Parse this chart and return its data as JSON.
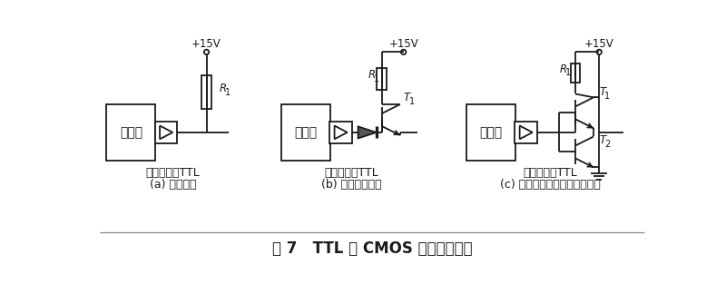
{
  "title": "图 7   TTL 或 CMOS 器件输出电路",
  "line_color": "#1a1a1a",
  "label_a": "(a) 直接输出",
  "label_b": "(b) 快速开通输出",
  "label_c": "(c) 快速开通和关断的推挽输出",
  "sub_label": "集电极开路TTL",
  "v15": "+15V",
  "r1_label": "R1",
  "t1_label": "T1",
  "t2_label": "T2",
  "mcu_label": "单片机",
  "font_size_title": 12,
  "font_size_label": 9,
  "font_size_sub": 9,
  "font_size_comp": 8.5
}
